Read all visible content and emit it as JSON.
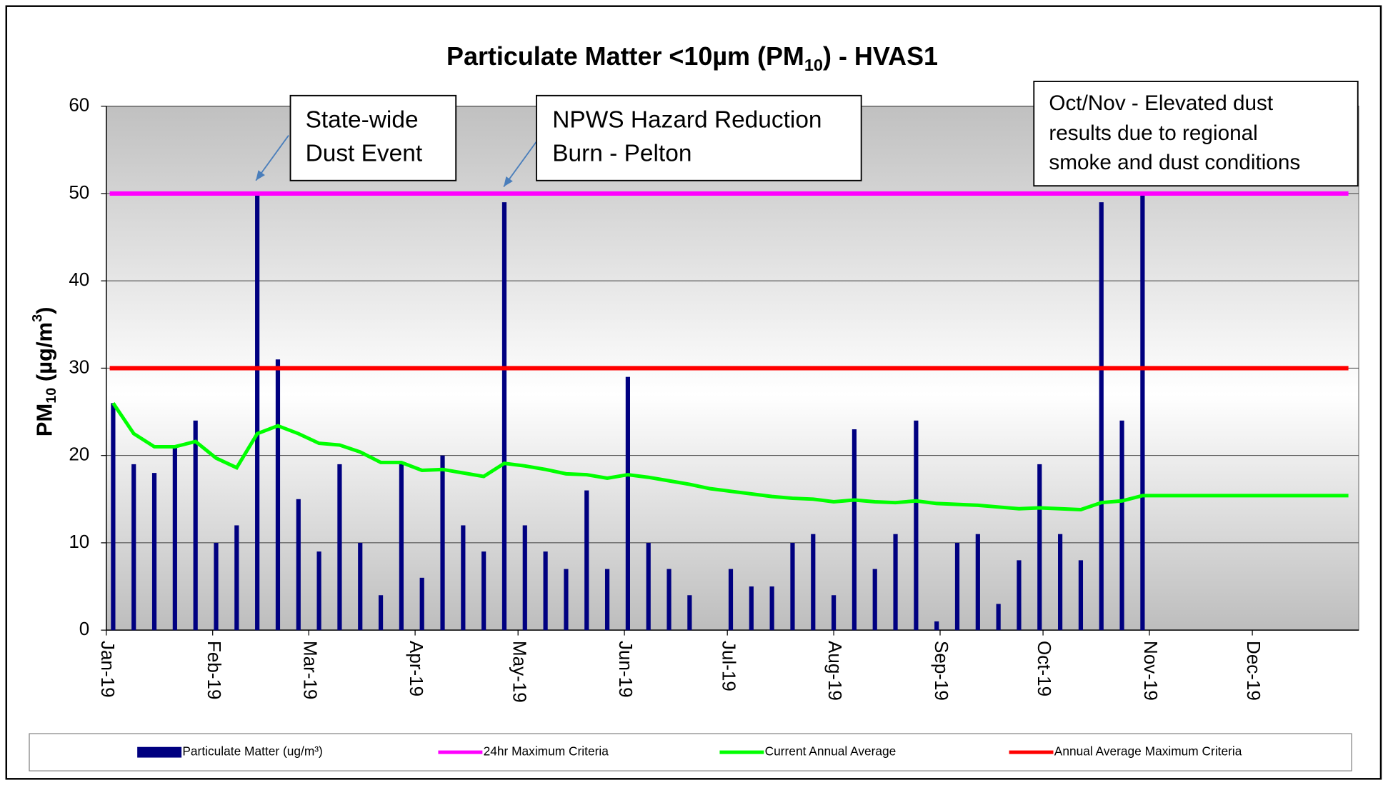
{
  "chart_data": {
    "type": "bar",
    "title": [
      "Particulate Matter <10µm (PM",
      "10",
      ") - HVAS1"
    ],
    "y_label": [
      "PM",
      "10",
      " (µg/m",
      "3",
      ")"
    ],
    "xlim": [
      0,
      365
    ],
    "xticks": [
      {
        "value": 0,
        "label": "Jan-19"
      },
      {
        "value": 31,
        "label": "Feb-19"
      },
      {
        "value": 59,
        "label": "Mar-19"
      },
      {
        "value": 90,
        "label": "Apr-19"
      },
      {
        "value": 120,
        "label": "May-19"
      },
      {
        "value": 151,
        "label": "Jun-19"
      },
      {
        "value": 181,
        "label": "Jul-19"
      },
      {
        "value": 212,
        "label": "Aug-19"
      },
      {
        "value": 243,
        "label": "Sep-19"
      },
      {
        "value": 273,
        "label": "Oct-19"
      },
      {
        "value": 304,
        "label": "Nov-19"
      },
      {
        "value": 334,
        "label": "Dec-19"
      }
    ],
    "ylim": [
      0,
      60
    ],
    "yticks": [
      0,
      10,
      20,
      30,
      40,
      50,
      60
    ],
    "grid": true,
    "series": [
      {
        "name": "Particulate Matter  (ug/m³)",
        "type": "bar",
        "color": "#000080",
        "x": [
          2,
          8,
          14,
          20,
          26,
          32,
          38,
          44,
          50,
          56,
          62,
          68,
          74,
          80,
          86,
          92,
          98,
          104,
          110,
          116,
          122,
          128,
          134,
          140,
          146,
          152,
          158,
          164,
          170,
          176,
          182,
          188,
          194,
          200,
          206,
          212,
          218,
          224,
          230,
          236,
          242,
          248,
          254,
          260,
          266,
          272,
          278,
          284,
          290,
          296,
          302
        ],
        "values": [
          26,
          19,
          18,
          21,
          24,
          10,
          12,
          50,
          31,
          15,
          9,
          19,
          10,
          4,
          19,
          6,
          20,
          12,
          9,
          49,
          12,
          9,
          7,
          16,
          7,
          29,
          10,
          7,
          4,
          null,
          7,
          5,
          5,
          10,
          11,
          4,
          23,
          7,
          11,
          24,
          1,
          10,
          11,
          3,
          8,
          19,
          11,
          8,
          49,
          24,
          50
        ]
      },
      {
        "name": "24hr Maximum Criteria",
        "type": "line",
        "color": "#ff00ff",
        "x": [
          1,
          362
        ],
        "values": [
          50,
          50
        ]
      },
      {
        "name": "Current Annual Average",
        "type": "line",
        "color": "#00ff00",
        "x": [
          2,
          8,
          14,
          20,
          26,
          32,
          38,
          44,
          50,
          56,
          62,
          68,
          74,
          80,
          86,
          92,
          98,
          104,
          110,
          116,
          122,
          128,
          134,
          140,
          146,
          152,
          158,
          164,
          170,
          176,
          182,
          188,
          194,
          200,
          206,
          212,
          218,
          224,
          230,
          236,
          242,
          248,
          254,
          260,
          266,
          272,
          278,
          284,
          290,
          296,
          302,
          362
        ],
        "values": [
          26,
          22.5,
          21,
          21,
          21.6,
          19.7,
          18.6,
          22.5,
          23.4,
          22.5,
          21.4,
          21.2,
          20.4,
          19.2,
          19.2,
          18.3,
          18.4,
          18,
          17.6,
          19.1,
          18.8,
          18.4,
          17.9,
          17.8,
          17.4,
          17.8,
          17.5,
          17.1,
          16.7,
          16.2,
          15.9,
          15.6,
          15.3,
          15.1,
          15,
          14.7,
          14.9,
          14.7,
          14.6,
          14.8,
          14.5,
          14.4,
          14.3,
          14.1,
          13.9,
          14,
          13.9,
          13.8,
          14.6,
          14.8,
          15.4,
          15.4
        ]
      },
      {
        "name": "Annual Average Maximum Criteria",
        "type": "line",
        "color": "#ff0000",
        "x": [
          1,
          362
        ],
        "values": [
          30,
          30
        ]
      }
    ],
    "annotations": [
      {
        "lines": [
          "State-wide",
          "Dust Event"
        ]
      },
      {
        "lines": [
          "NPWS Hazard Reduction",
          "Burn - Pelton"
        ]
      },
      {
        "lines": [
          "Oct/Nov - Elevated dust",
          "results due to regional",
          "smoke and dust conditions"
        ]
      }
    ]
  }
}
